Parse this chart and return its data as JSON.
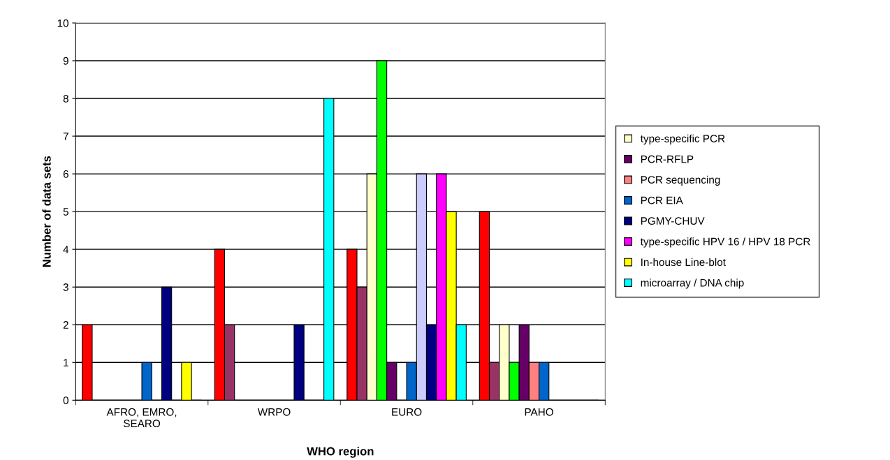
{
  "chart_data": {
    "type": "bar",
    "xlabel": "WHO region",
    "ylabel": "Number of data sets",
    "categories": [
      "AFRO, EMRO,\nSEARO",
      "WRPO",
      "EURO",
      "PAHO"
    ],
    "ylim": [
      0,
      10
    ],
    "yticks": [
      0,
      1,
      2,
      3,
      4,
      5,
      6,
      7,
      8,
      9,
      10
    ],
    "grid": "y",
    "legend": "right",
    "series": [
      {
        "color": "#ff0000",
        "values": [
          2,
          4,
          4,
          5
        ]
      },
      {
        "color": "#993366",
        "values": [
          0,
          2,
          3,
          1
        ]
      },
      {
        "name": "type-specific PCR",
        "color": "#ffffcc",
        "values": [
          0,
          0,
          6,
          2
        ]
      },
      {
        "color": "#00ff00",
        "values": [
          0,
          0,
          9,
          1
        ]
      },
      {
        "name": "PCR-RFLP",
        "color": "#660066",
        "values": [
          0,
          0,
          1,
          2
        ]
      },
      {
        "name": "PCR sequencing",
        "color": "#ff8080",
        "values": [
          0,
          0,
          0,
          1
        ]
      },
      {
        "name": "PCR EIA",
        "color": "#0066cc",
        "values": [
          1,
          0,
          1,
          1
        ]
      },
      {
        "color": "#ccccff",
        "values": [
          0,
          0,
          6,
          0
        ]
      },
      {
        "name": "PGMY-CHUV",
        "color": "#000080",
        "values": [
          3,
          2,
          2,
          0
        ]
      },
      {
        "name": "type-specific HPV 16 / HPV 18 PCR",
        "color": "#ff00ff",
        "values": [
          0,
          0,
          6,
          0
        ]
      },
      {
        "name": "In-house Line-blot",
        "color": "#ffff00",
        "values": [
          1,
          0,
          5,
          0
        ]
      },
      {
        "name": "microarray / DNA chip",
        "color": "#00ffff",
        "values": [
          0,
          8,
          2,
          0
        ]
      }
    ]
  }
}
